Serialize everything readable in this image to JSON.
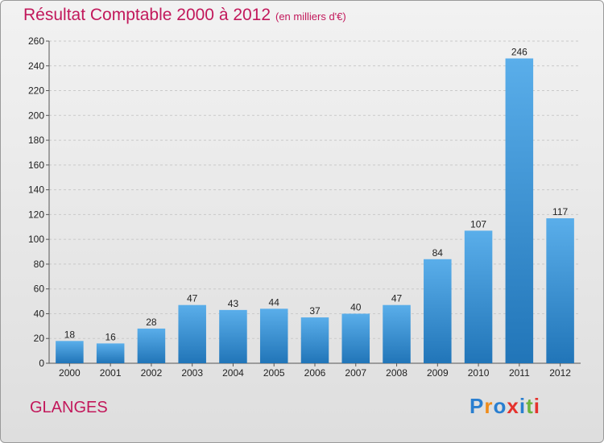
{
  "title": "Résultat Comptable 2000 à 2012",
  "subtitle": "(en milliers d'€)",
  "place": "GLANGES",
  "logo": {
    "letters": [
      "P",
      "r",
      "o",
      "x",
      "i",
      "t",
      "i"
    ],
    "colors": [
      "#2a7fd0",
      "#f08c1a",
      "#2a7fd0",
      "#e5322d",
      "#2a7fd0",
      "#6cb33f",
      "#e5322d"
    ]
  },
  "chart_data": {
    "type": "bar",
    "categories": [
      "2000",
      "2001",
      "2002",
      "2003",
      "2004",
      "2005",
      "2006",
      "2007",
      "2008",
      "2009",
      "2010",
      "2011",
      "2012"
    ],
    "values": [
      18,
      16,
      28,
      47,
      43,
      44,
      37,
      40,
      47,
      84,
      107,
      246,
      117
    ],
    "ylim": [
      0,
      260
    ],
    "yticks": [
      0,
      20,
      40,
      60,
      80,
      100,
      120,
      140,
      160,
      180,
      200,
      220,
      240,
      260
    ],
    "grid": true,
    "bar_color": "#3d92d8"
  }
}
